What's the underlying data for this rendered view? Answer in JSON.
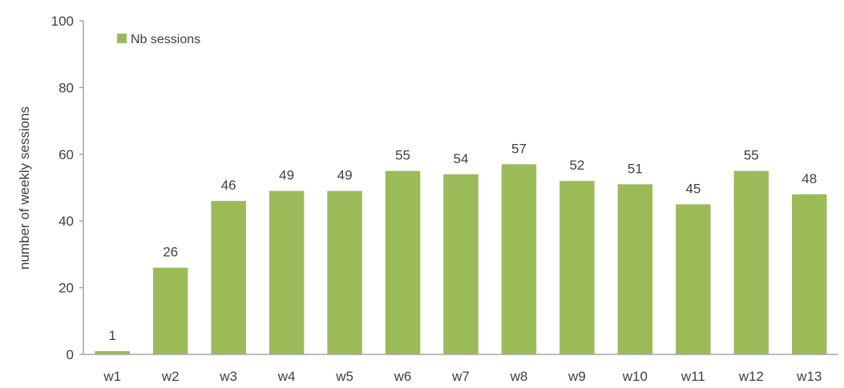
{
  "chart_data": {
    "type": "bar",
    "categories": [
      "w1",
      "w2",
      "w3",
      "w4",
      "w5",
      "w6",
      "w7",
      "w8",
      "w9",
      "w10",
      "w11",
      "w12",
      "w13"
    ],
    "series": [
      {
        "name": "Nb sessions",
        "values": [
          1,
          26,
          46,
          49,
          49,
          55,
          54,
          57,
          52,
          51,
          45,
          55,
          48
        ]
      }
    ],
    "xlabel": "",
    "ylabel": "number of weekly sessions",
    "ylim": [
      0,
      100
    ],
    "yticks": [
      "0",
      "20",
      "40",
      "60",
      "80",
      "100"
    ],
    "grid": false,
    "legend": "top-left",
    "bar_color": "#9bbb59"
  }
}
